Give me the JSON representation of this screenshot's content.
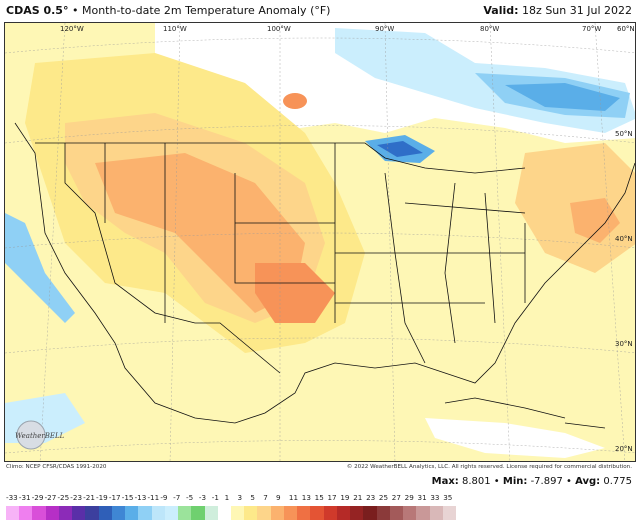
{
  "header": {
    "model": "CDAS 0.5°",
    "separator": "•",
    "title": "Month-to-date 2m Temperature Anomaly (°F)",
    "valid_label": "Valid:",
    "valid_time": "18z Sun 31 Jul 2022"
  },
  "map": {
    "lon_labels": [
      "120°W",
      "110°W",
      "100°W",
      "90°W",
      "80°W",
      "70°W"
    ],
    "lat_labels": [
      "60°N",
      "50°N",
      "40°N",
      "30°N",
      "20°N"
    ],
    "logo_text": "WeatherBELL",
    "colors": {
      "neutral": "#ffffff",
      "light_yellow": "#fef7b5",
      "yellow": "#fde98a",
      "light_orange": "#fdd58a",
      "orange": "#fbb26e",
      "dark_orange": "#f79358",
      "red_orange": "#ef7043",
      "light_blue": "#cbeefd",
      "blue": "#8fd0f5",
      "mid_blue": "#5aaee8",
      "dark_blue": "#2f6ec8"
    }
  },
  "footer": {
    "climo": "Climo: NCEP CFSR/CDAS 1991-2020",
    "copyright": "© 2022 WeatherBELL Analytics, LLC. All rights reserved. License required for commercial distribution.",
    "max_label": "Max:",
    "max_value": "8.801",
    "min_label": "Min:",
    "min_value": "-7.897",
    "avg_label": "Avg:",
    "avg_value": "0.775",
    "separator": "•"
  },
  "colorbar": {
    "ticks": [
      "-33",
      "-31",
      "-29",
      "-27",
      "-25",
      "-23",
      "-21",
      "-19",
      "-17",
      "-15",
      "-13",
      "-11",
      "-9",
      "-7",
      "-5",
      "-3",
      "-1",
      "1",
      "3",
      "5",
      "7",
      "9",
      "11",
      "13",
      "15",
      "17",
      "19",
      "21",
      "23",
      "25",
      "27",
      "29",
      "31",
      "33",
      "35"
    ],
    "colors": [
      "#f7b3f7",
      "#ef7fef",
      "#d94fd9",
      "#b62fc6",
      "#8c2bb8",
      "#5a2fa8",
      "#3c3f9e",
      "#2f5fb8",
      "#3f86d4",
      "#5aaee8",
      "#8fd0f5",
      "#bde6fa",
      "#cbeefd",
      "#9be39b",
      "#6fd06f",
      "#cfeedc",
      "#ffffff",
      "#fef7b5",
      "#fde98a",
      "#fdd58a",
      "#fbb26e",
      "#f79358",
      "#ef7043",
      "#e45434",
      "#d03a2b",
      "#b52a27",
      "#952323",
      "#7a1e1e",
      "#8b3a3a",
      "#a35a5a",
      "#b87878",
      "#c99898",
      "#d9b8b8",
      "#e8d4d4"
    ]
  }
}
